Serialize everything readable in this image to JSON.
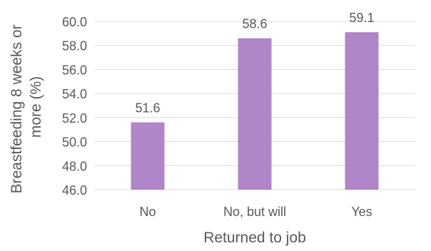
{
  "chart_data": {
    "type": "bar",
    "title": "",
    "xlabel": "Returned to job",
    "ylabel": "Breastfeeding 8 weeks or more (%)",
    "ylabel_lines": [
      "Breastfeeding 8 weeks or",
      "more (%)"
    ],
    "categories": [
      "No",
      "No, but will",
      "Yes"
    ],
    "values": [
      51.6,
      58.6,
      59.1
    ],
    "value_labels": [
      "51.6",
      "58.6",
      "59.1"
    ],
    "ylim": [
      46.0,
      60.0
    ],
    "yticks": [
      46.0,
      48.0,
      50.0,
      52.0,
      54.0,
      56.0,
      58.0,
      60.0
    ],
    "ytick_labels": [
      "46.0",
      "48.0",
      "50.0",
      "52.0",
      "54.0",
      "56.0",
      "58.0",
      "60.0"
    ],
    "grid": true,
    "legend": "none",
    "bar_color": "#AF86C7",
    "grid_color": "#D9D9D9",
    "text_color": "#595959"
  }
}
